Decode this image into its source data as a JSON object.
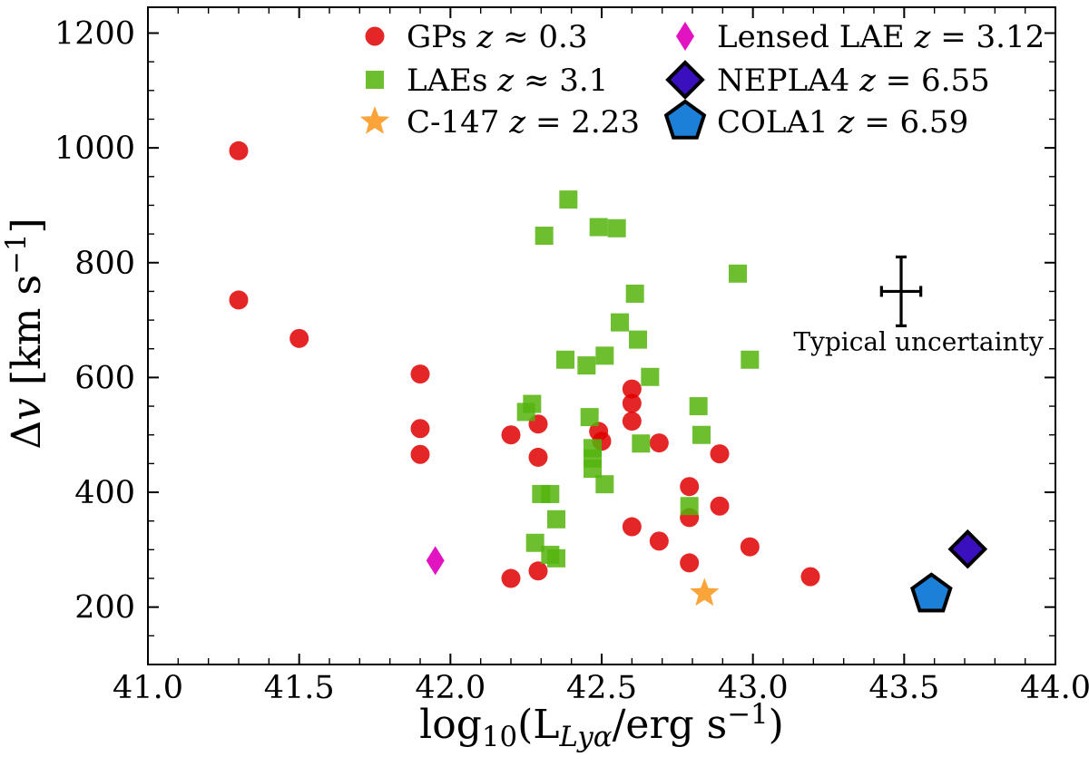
{
  "chart_data": {
    "type": "scatter",
    "title": "",
    "xlabel": "log10(L_Lya / erg s^-1)",
    "ylabel": "Delta v [km s^-1]",
    "xlabel_rich": [
      {
        "t": "log"
      },
      {
        "t": "10",
        "sub": true
      },
      {
        "t": "(L"
      },
      {
        "t": "Lyα",
        "sub": true,
        "italic": true
      },
      {
        "t": "/erg s"
      },
      {
        "t": "−1",
        "sup": true
      },
      {
        "t": ")"
      }
    ],
    "ylabel_rich": [
      {
        "t": "Δ"
      },
      {
        "t": "v",
        "italic": true
      },
      {
        "t": " [km s"
      },
      {
        "t": "−1",
        "sup": true
      },
      {
        "t": "]"
      }
    ],
    "xlim": [
      41.0,
      44.0
    ],
    "ylim": [
      100,
      1245
    ],
    "x_major_ticks": [
      41.0,
      41.5,
      42.0,
      42.5,
      43.0,
      43.5,
      44.0
    ],
    "x_minor_step": 0.1,
    "y_major_ticks": [
      200,
      400,
      600,
      800,
      1000,
      1200
    ],
    "y_minor_step": 50,
    "grid": false,
    "legend_position": "upper center, 2 columns",
    "series": [
      {
        "name": "GPs z ≈ 0.3",
        "marker": "circle",
        "color": "#e00000",
        "opacity": 0.85,
        "points": [
          [
            41.3,
            995
          ],
          [
            41.3,
            735
          ],
          [
            41.5,
            668
          ],
          [
            41.9,
            606
          ],
          [
            41.9,
            511
          ],
          [
            41.9,
            466
          ],
          [
            42.2,
            500
          ],
          [
            42.2,
            250
          ],
          [
            42.29,
            519
          ],
          [
            42.29,
            461
          ],
          [
            42.29,
            263
          ],
          [
            42.49,
            506
          ],
          [
            42.5,
            489
          ],
          [
            42.6,
            580
          ],
          [
            42.6,
            555
          ],
          [
            42.6,
            524
          ],
          [
            42.6,
            340
          ],
          [
            42.69,
            486
          ],
          [
            42.69,
            315
          ],
          [
            42.79,
            410
          ],
          [
            42.79,
            356
          ],
          [
            42.79,
            277
          ],
          [
            42.89,
            467
          ],
          [
            42.89,
            376
          ],
          [
            42.99,
            305
          ],
          [
            43.19,
            253
          ]
        ]
      },
      {
        "name": "LAEs z ≈ 3.1",
        "marker": "square",
        "color": "#54b40c",
        "opacity": 0.85,
        "points": [
          [
            42.39,
            910
          ],
          [
            42.49,
            862
          ],
          [
            42.55,
            860
          ],
          [
            42.31,
            847
          ],
          [
            42.95,
            781
          ],
          [
            42.61,
            746
          ],
          [
            42.56,
            696
          ],
          [
            42.62,
            666
          ],
          [
            42.51,
            638
          ],
          [
            42.38,
            631
          ],
          [
            42.99,
            631
          ],
          [
            42.45,
            621
          ],
          [
            42.66,
            601
          ],
          [
            42.27,
            554
          ],
          [
            42.82,
            550
          ],
          [
            42.25,
            540
          ],
          [
            42.46,
            531
          ],
          [
            42.83,
            500
          ],
          [
            42.63,
            485
          ],
          [
            42.47,
            477
          ],
          [
            42.47,
            459
          ],
          [
            42.47,
            441
          ],
          [
            42.51,
            414
          ],
          [
            42.3,
            397
          ],
          [
            42.33,
            397
          ],
          [
            42.79,
            376
          ],
          [
            42.35,
            353
          ],
          [
            42.28,
            312
          ],
          [
            42.33,
            291
          ],
          [
            42.35,
            285
          ]
        ]
      },
      {
        "name": "C-147 z = 2.23",
        "marker": "star",
        "color": "#faa43a",
        "opacity": 1,
        "points": [
          [
            42.84,
            224
          ]
        ]
      },
      {
        "name": "Lensed LAE z = 3.12",
        "marker": "thin-diamond",
        "color": "#e214c2",
        "opacity": 1,
        "points": [
          [
            41.95,
            281
          ]
        ]
      },
      {
        "name": "NEPLA4 z = 6.55",
        "marker": "diamond",
        "color": "#3a0fbe",
        "edge": "#000000",
        "opacity": 1,
        "points": [
          [
            43.71,
            301
          ]
        ]
      },
      {
        "name": "COLA1 z = 6.59",
        "marker": "pentagon",
        "color": "#1d80d8",
        "edge": "#000000",
        "opacity": 1,
        "points": [
          [
            43.59,
            222
          ]
        ]
      }
    ],
    "annotations": {
      "typical_uncertainty": {
        "label": "Typical uncertainty",
        "x": 43.49,
        "y": 750,
        "xerr": 0.065,
        "yerr": 60
      }
    }
  }
}
